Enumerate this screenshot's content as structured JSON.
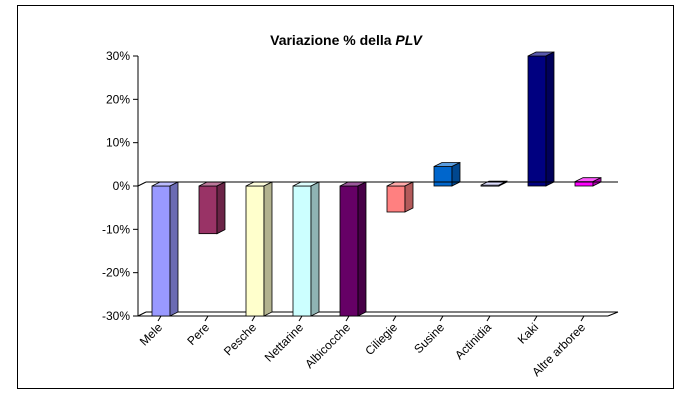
{
  "chart_data": {
    "type": "bar",
    "title": "Variazione % della PLV",
    "title_prefix": "Variazione % della ",
    "title_italic": "PLV",
    "xlabel": "",
    "ylabel": "",
    "ylim": [
      -30,
      30
    ],
    "yticks": [
      30,
      20,
      10,
      0,
      -10,
      -20,
      -30
    ],
    "ytick_labels": [
      "30%",
      "20%",
      "10%",
      "0%",
      "-10%",
      "-20%",
      "-30%"
    ],
    "grid": false,
    "legend": "none",
    "categories": [
      "Mele",
      "Pere",
      "Pesche",
      "Nettarine",
      "Albicocche",
      "Ciliegie",
      "Susine",
      "Actinidia",
      "Kaki",
      "Altre arboree"
    ],
    "values": [
      -30,
      -11,
      -30,
      -30,
      -30,
      -6,
      4.5,
      0.2,
      30,
      1
    ],
    "colors": [
      "#9999FF",
      "#993366",
      "#FFFFCC",
      "#CCFFFF",
      "#660066",
      "#FF8080",
      "#0066CC",
      "#CCCCFF",
      "#000080",
      "#FF00FF"
    ]
  }
}
